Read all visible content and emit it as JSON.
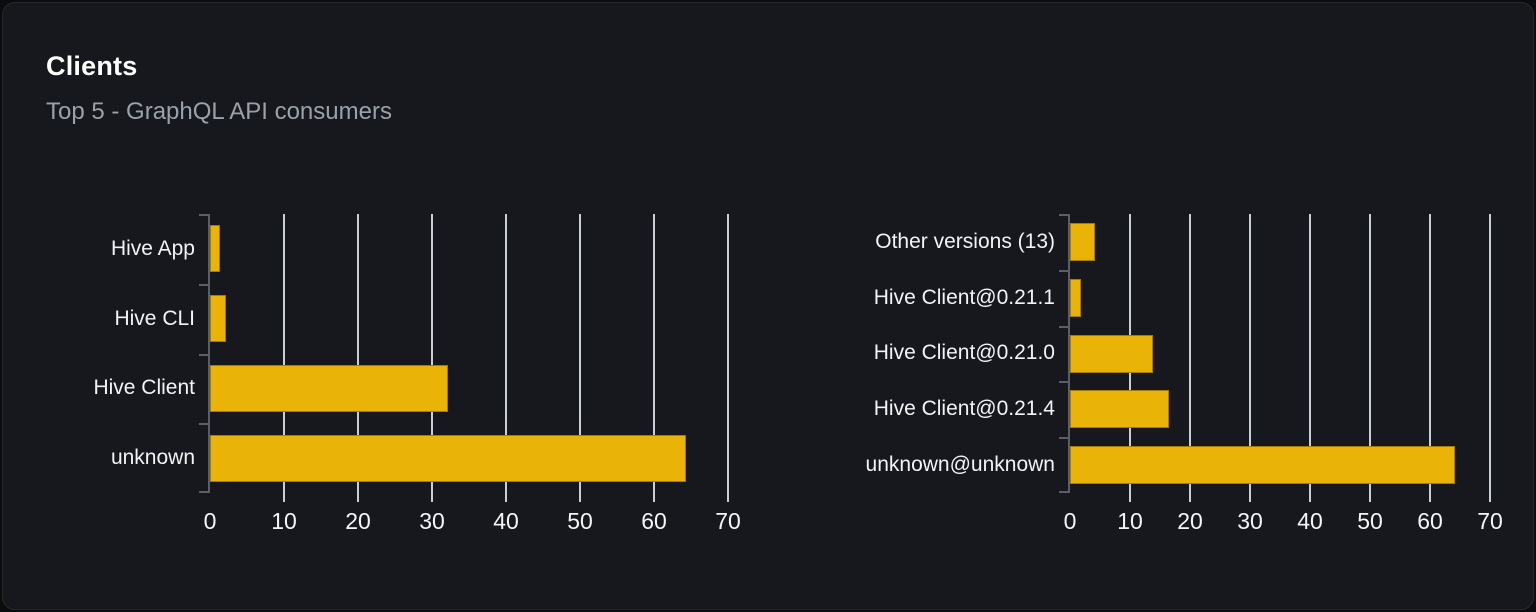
{
  "card": {
    "title": "Clients",
    "subtitle": "Top 5 - GraphQL API consumers"
  },
  "colors": {
    "bar": "#eab308",
    "card_background": "#16181d",
    "page_background": "#0b0c0e",
    "gridline": "#e4e8f0",
    "axis_line": "#5b5e65",
    "title_text": "#ffffff",
    "subtitle_text": "#9aa1ab",
    "label_text": "#f2f3f5"
  },
  "chart_data": [
    {
      "type": "bar",
      "orientation": "horizontal",
      "title": "",
      "categories": [
        "Hive App",
        "Hive CLI",
        "Hive Client",
        "unknown"
      ],
      "values": [
        1.3,
        2.2,
        32.2,
        64.3
      ],
      "xticks": [
        "0",
        "10",
        "20",
        "30",
        "40",
        "50",
        "60",
        "70"
      ],
      "xlabel": "",
      "ylabel": "",
      "xlim": [
        0,
        71
      ],
      "grid": true,
      "legend": "none"
    },
    {
      "type": "bar",
      "orientation": "horizontal",
      "title": "",
      "categories": [
        "Other versions (13)",
        "Hive Client@0.21.1",
        "Hive Client@0.21.0",
        "Hive Client@0.21.4",
        "unknown@unknown"
      ],
      "values": [
        4.2,
        1.9,
        13.8,
        16.5,
        64.1
      ],
      "xticks": [
        "0",
        "10",
        "20",
        "30",
        "40",
        "50",
        "60",
        "70"
      ],
      "xlabel": "",
      "ylabel": "",
      "xlim": [
        0,
        71
      ],
      "grid": true,
      "legend": "none"
    }
  ]
}
